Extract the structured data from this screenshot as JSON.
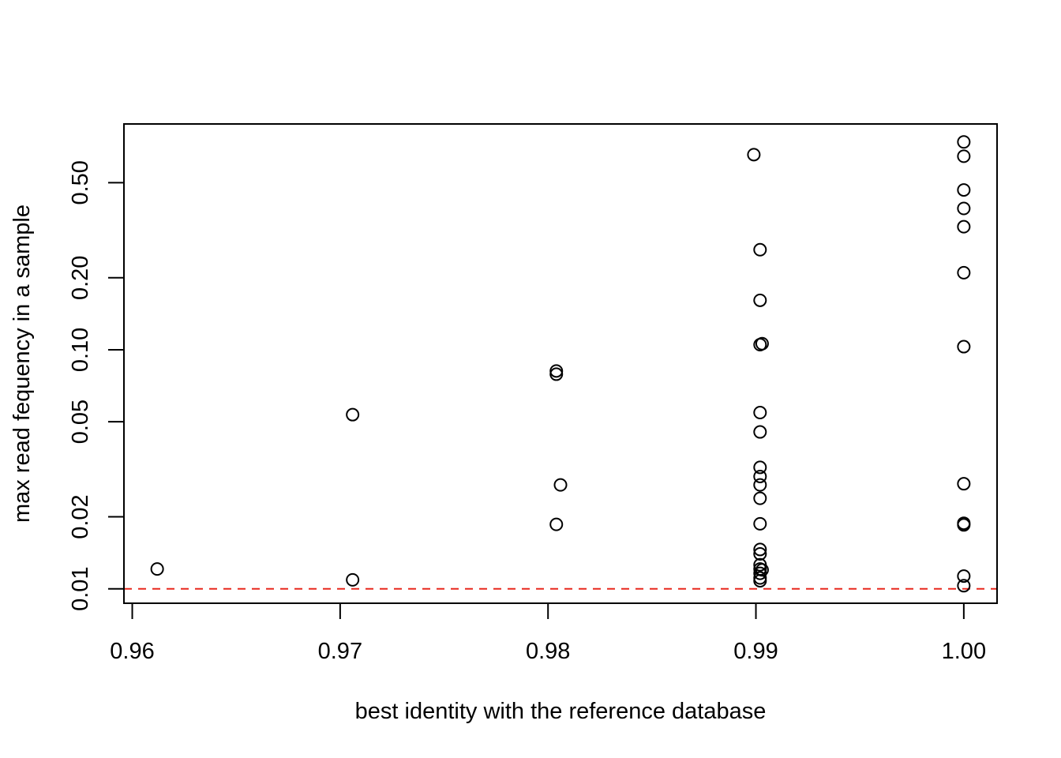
{
  "chart_data": {
    "type": "scatter",
    "title": "",
    "xlabel": "best identity with the reference database",
    "ylabel": "max read fequency in a sample",
    "y_scale": "log",
    "xlim": [
      0.9596,
      1.0016
    ],
    "ylim": [
      0.0087,
      0.88
    ],
    "grid": false,
    "legend": "none",
    "x_ticks": [
      0.96,
      0.97,
      0.98,
      0.99,
      1.0
    ],
    "x_tick_labels": [
      "0.96",
      "0.97",
      "0.98",
      "0.99",
      "1.00"
    ],
    "y_ticks": [
      0.01,
      0.02,
      0.05,
      0.1,
      0.2,
      0.5
    ],
    "y_tick_labels": [
      "0.01",
      "0.02",
      "0.05",
      "0.10",
      "0.20",
      "0.50"
    ],
    "reference_line": {
      "y": 0.01,
      "color": "#e8281e",
      "style": "dashed"
    },
    "marker": {
      "shape": "open-circle",
      "color": "#000000"
    },
    "points": [
      {
        "x": 0.9612,
        "y": 0.0121
      },
      {
        "x": 0.9706,
        "y": 0.0109
      },
      {
        "x": 0.9706,
        "y": 0.0535
      },
      {
        "x": 0.9804,
        "y": 0.0815
      },
      {
        "x": 0.9804,
        "y": 0.079
      },
      {
        "x": 0.9806,
        "y": 0.0272
      },
      {
        "x": 0.9804,
        "y": 0.0186
      },
      {
        "x": 0.9899,
        "y": 0.655
      },
      {
        "x": 0.9902,
        "y": 0.262
      },
      {
        "x": 0.9902,
        "y": 0.161
      },
      {
        "x": 0.9902,
        "y": 0.105
      },
      {
        "x": 0.9903,
        "y": 0.106
      },
      {
        "x": 0.9902,
        "y": 0.0546
      },
      {
        "x": 0.9902,
        "y": 0.0453
      },
      {
        "x": 0.9902,
        "y": 0.0322
      },
      {
        "x": 0.9902,
        "y": 0.0295
      },
      {
        "x": 0.9902,
        "y": 0.0272
      },
      {
        "x": 0.9902,
        "y": 0.0239
      },
      {
        "x": 0.9902,
        "y": 0.0187
      },
      {
        "x": 0.9902,
        "y": 0.0146
      },
      {
        "x": 0.9902,
        "y": 0.014
      },
      {
        "x": 0.9902,
        "y": 0.0126
      },
      {
        "x": 0.9902,
        "y": 0.0121
      },
      {
        "x": 0.9902,
        "y": 0.0116
      },
      {
        "x": 0.9902,
        "y": 0.0111
      },
      {
        "x": 0.9902,
        "y": 0.0108
      },
      {
        "x": 0.9903,
        "y": 0.012
      },
      {
        "x": 1.0,
        "y": 0.74
      },
      {
        "x": 1.0,
        "y": 0.645
      },
      {
        "x": 1.0,
        "y": 0.466
      },
      {
        "x": 1.0,
        "y": 0.39
      },
      {
        "x": 1.0,
        "y": 0.327
      },
      {
        "x": 1.0,
        "y": 0.21
      },
      {
        "x": 1.0,
        "y": 0.103
      },
      {
        "x": 1.0,
        "y": 0.0275
      },
      {
        "x": 1.0,
        "y": 0.0188
      },
      {
        "x": 1.0,
        "y": 0.0185
      },
      {
        "x": 1.0,
        "y": 0.0113
      },
      {
        "x": 1.0,
        "y": 0.0103
      }
    ]
  }
}
